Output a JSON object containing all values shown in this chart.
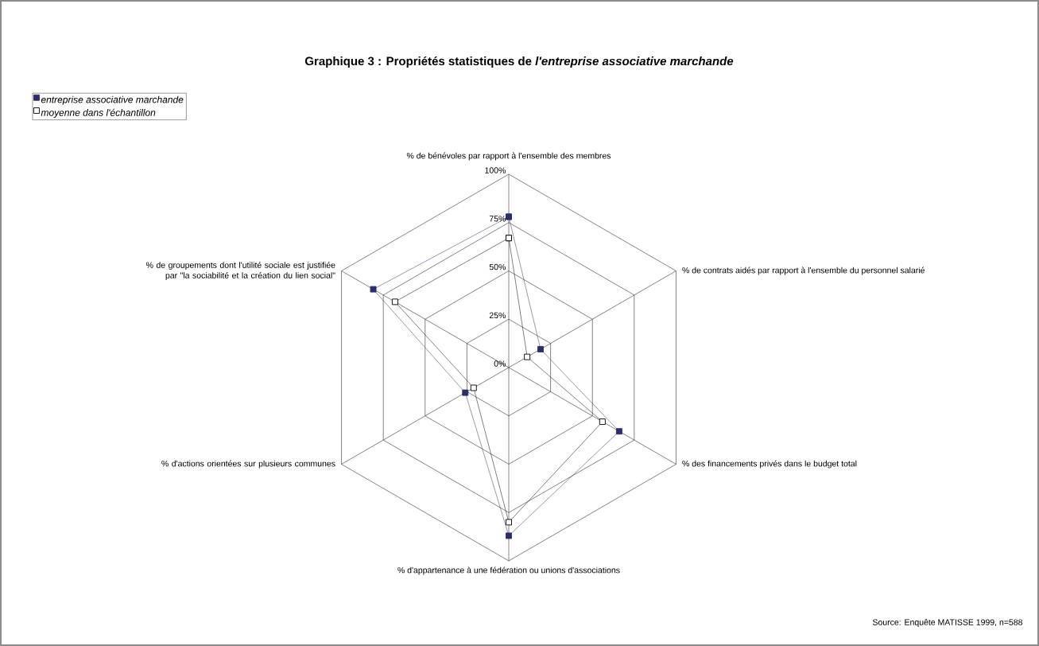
{
  "chart_data": {
    "type": "radar",
    "title": "Graphique 3 : Propriétés statistiques de *l'entreprise associative marchande*",
    "categories": [
      "% de bénévoles par rapport à l'ensemble des membres",
      "% de contrats aidés par rapport à l'ensemble du personnel salarié",
      "% des financements privés dans le budget total",
      "% d'appartenance à une fédération ou unions d'associations",
      "% d'actions orientées sur plusieurs communes",
      "% de groupements dont l'utilité sociale est justifiée par \"la sociabilité et la création du lien social\""
    ],
    "series": [
      {
        "name": "entreprise associative marchande",
        "color": "#2e2e66",
        "values": [
          78,
          19,
          66,
          87,
          26,
          81
        ]
      },
      {
        "name": "moyenne dans l'échantillon",
        "color": "#000000",
        "values": [
          67,
          11,
          56,
          80,
          21,
          68
        ]
      }
    ],
    "ylim": [
      0,
      100
    ],
    "yticks": [
      {
        "value": 0,
        "label": "0%"
      },
      {
        "value": 25,
        "label": "25%"
      },
      {
        "value": 50,
        "label": "50%"
      },
      {
        "value": 75,
        "label": "75%"
      },
      {
        "value": 100,
        "label": "100%"
      }
    ],
    "grid": true,
    "legend": "top left",
    "marker": "square",
    "annotations": [
      "Source: Enquête MATISSE 1999, n=588"
    ]
  }
}
